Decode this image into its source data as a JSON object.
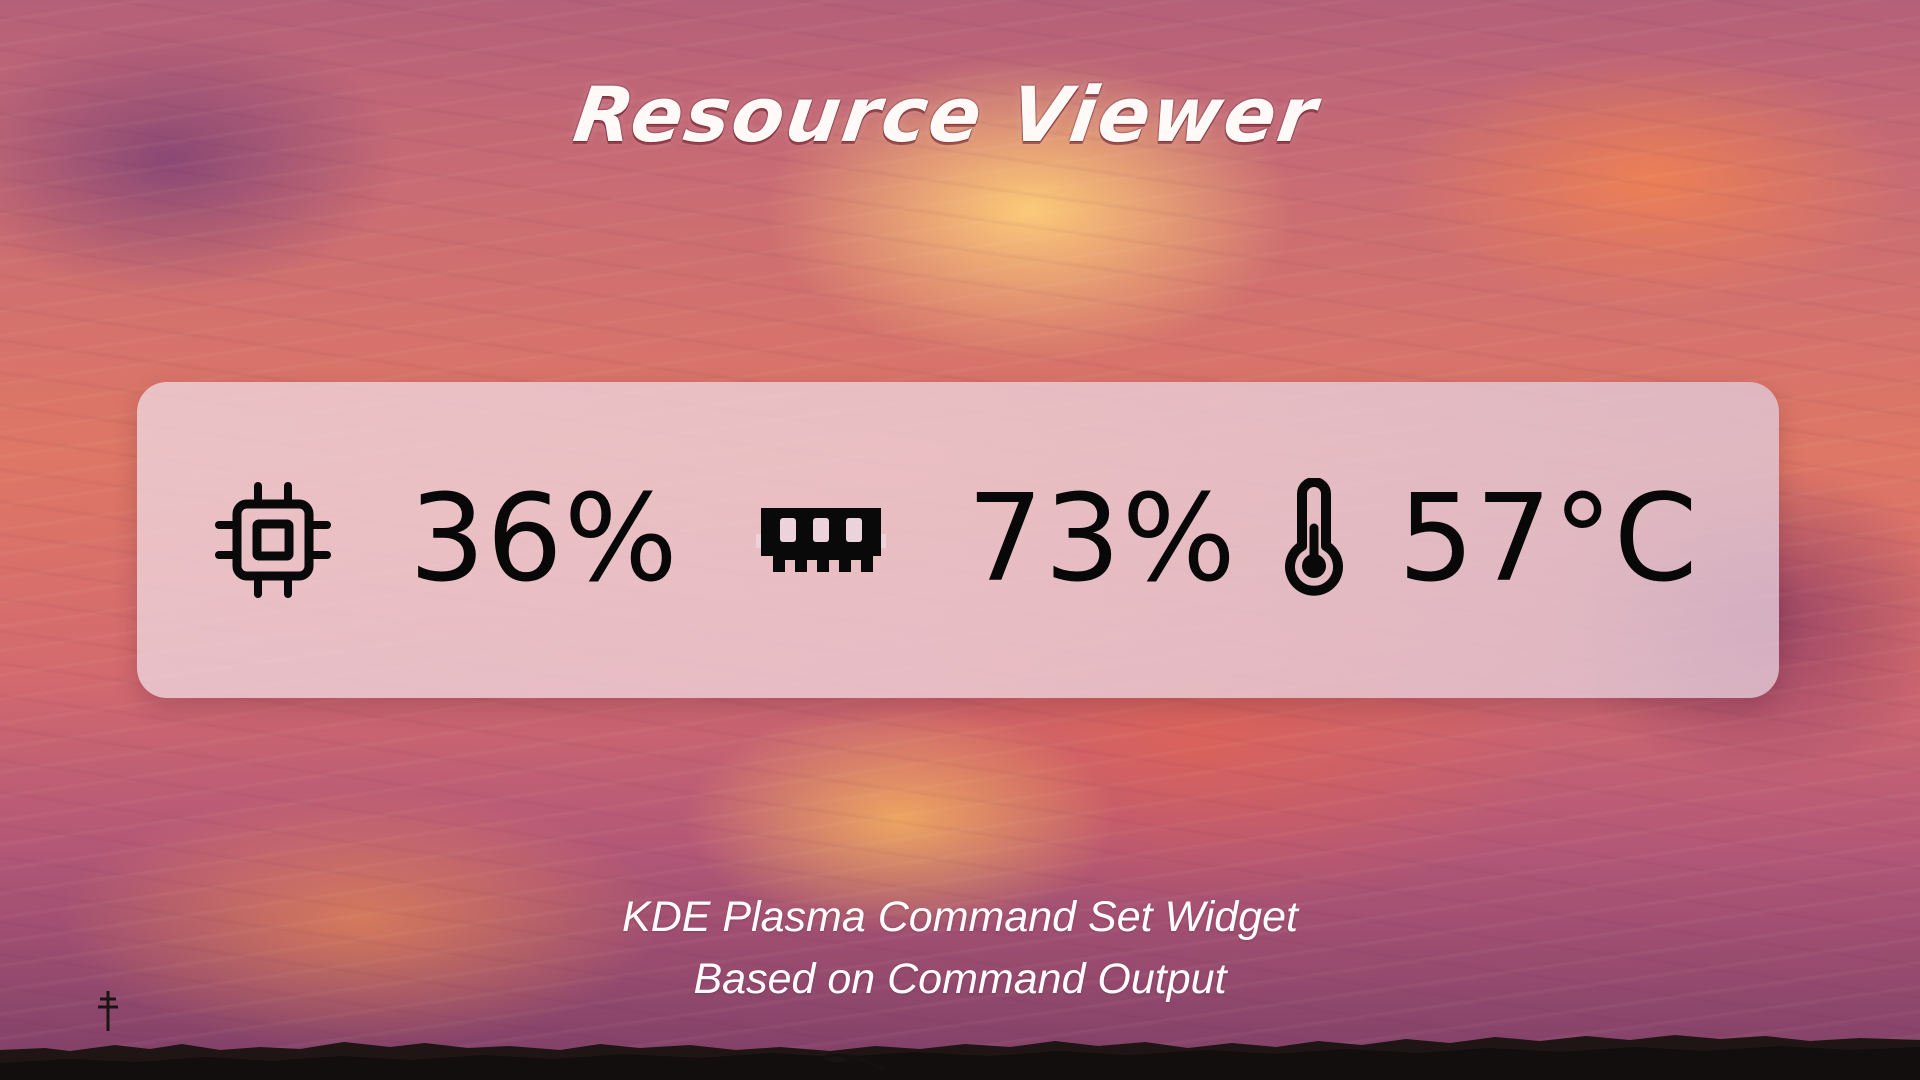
{
  "header": {
    "title": "Resource Viewer"
  },
  "widget": {
    "metrics": [
      {
        "icon": "cpu-chip-icon",
        "value": "36%"
      },
      {
        "icon": "memory-module-icon",
        "value": "73%"
      },
      {
        "icon": "thermometer-icon",
        "value": "57°C"
      }
    ]
  },
  "footer": {
    "line_1": "KDE Plasma Command Set Widget",
    "line_2": "Based on Command Output"
  },
  "colors": {
    "widget_background": "#ecd3db",
    "metric_text": "#080808",
    "title_text": "#fffaf8",
    "caption_text": "#fffdfd"
  }
}
